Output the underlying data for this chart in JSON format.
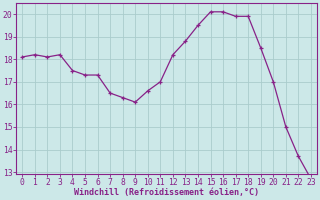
{
  "x": [
    0,
    1,
    2,
    3,
    4,
    5,
    6,
    7,
    8,
    9,
    10,
    11,
    12,
    13,
    14,
    15,
    16,
    17,
    18,
    19,
    20,
    21,
    22,
    23
  ],
  "y": [
    18.1,
    18.2,
    18.1,
    18.2,
    17.5,
    17.3,
    17.3,
    16.5,
    16.3,
    16.1,
    16.6,
    17.0,
    18.2,
    18.8,
    19.5,
    20.1,
    20.1,
    19.9,
    19.9,
    18.5,
    17.0,
    15.0,
    13.7,
    12.7
  ],
  "line_color": "#882288",
  "marker": "+",
  "markersize": 3.5,
  "linewidth": 0.9,
  "markeredgewidth": 0.9,
  "xlabel": "Windchill (Refroidissement éolien,°C)",
  "ylabel": "",
  "ylim": [
    12.9,
    20.5
  ],
  "xlim": [
    -0.5,
    23.5
  ],
  "yticks": [
    13,
    14,
    15,
    16,
    17,
    18,
    19,
    20
  ],
  "xticks": [
    0,
    1,
    2,
    3,
    4,
    5,
    6,
    7,
    8,
    9,
    10,
    11,
    12,
    13,
    14,
    15,
    16,
    17,
    18,
    19,
    20,
    21,
    22,
    23
  ],
  "background_color": "#cce8e8",
  "grid_color": "#aacccc",
  "axis_color": "#882288",
  "tick_color": "#882288",
  "label_color": "#882288",
  "xlabel_fontsize": 6.0,
  "tick_fontsize": 5.8,
  "ylabel_fontsize": 6.0,
  "fig_width": 3.2,
  "fig_height": 2.0,
  "dpi": 100
}
